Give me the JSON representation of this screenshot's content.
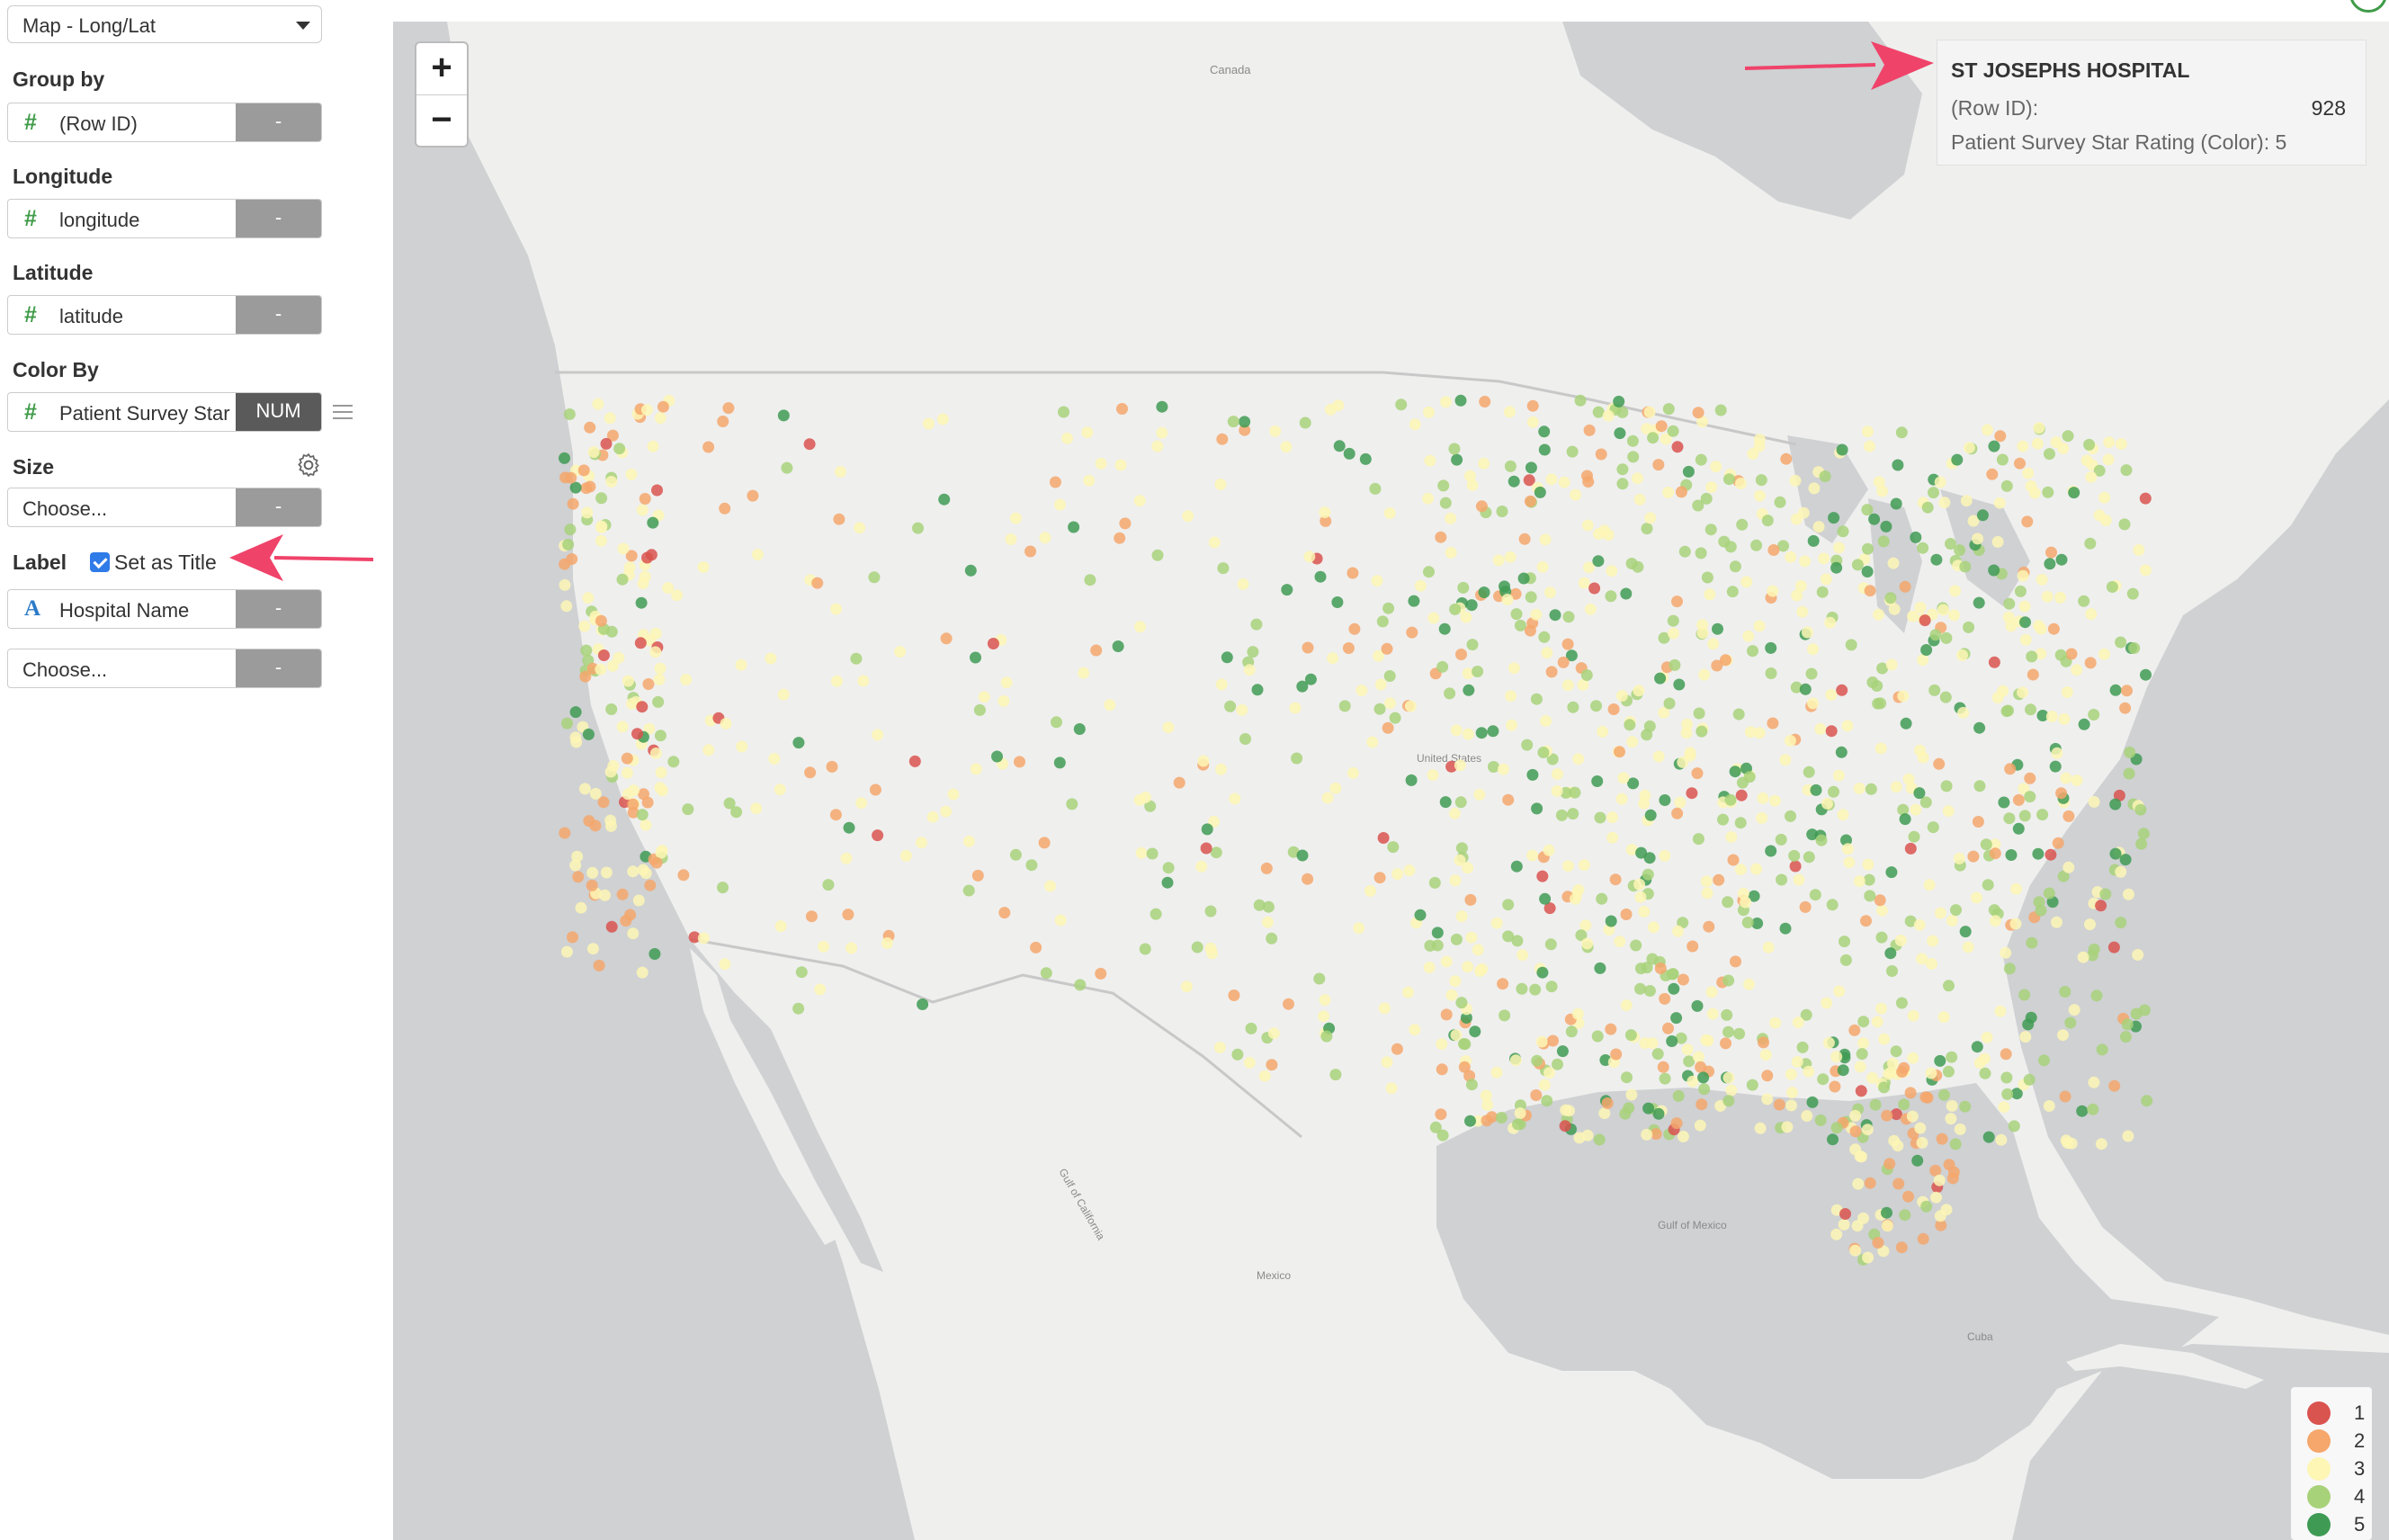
{
  "sidebar": {
    "chart_type": "Map - Long/Lat",
    "group_by": {
      "label": "Group by",
      "icon": "hash-icon",
      "value": "(Row ID)",
      "button": "-"
    },
    "longitude": {
      "label": "Longitude",
      "icon": "hash-icon",
      "value": "longitude",
      "button": "-"
    },
    "latitude": {
      "label": "Latitude",
      "icon": "hash-icon",
      "value": "latitude",
      "button": "-"
    },
    "color_by": {
      "label": "Color By",
      "icon": "hash-icon",
      "value": "Patient Survey Star Rating",
      "button": "NUM"
    },
    "size": {
      "label": "Size",
      "value": "Choose...",
      "button": "-"
    },
    "label": {
      "label": "Label",
      "set_as_title": "Set as Title",
      "checked": true,
      "field1": "Hospital Name",
      "field2": "Choose...",
      "button": "-"
    }
  },
  "map": {
    "zoom_in": "+",
    "zoom_out": "−",
    "tooltip": {
      "title": "ST JOSEPHS HOSPITAL",
      "row_id_label": "(Row ID):",
      "row_id_value": "928",
      "rating_label": "Patient Survey Star Rating (Color):",
      "rating_value": "5"
    },
    "legend": [
      {
        "value": "1",
        "color": "#d9534f"
      },
      {
        "value": "2",
        "color": "#f5a76c"
      },
      {
        "value": "3",
        "color": "#fdf6b5"
      },
      {
        "value": "4",
        "color": "#a8d27a"
      },
      {
        "value": "5",
        "color": "#3f9b54"
      }
    ],
    "place_labels": {
      "canada": "Canada",
      "united_states": "United States",
      "mexico": "Mexico",
      "gulf_of_mexico": "Gulf of Mexico",
      "cuba": "Cuba",
      "gulf_of_california": "Gulf of California"
    }
  }
}
